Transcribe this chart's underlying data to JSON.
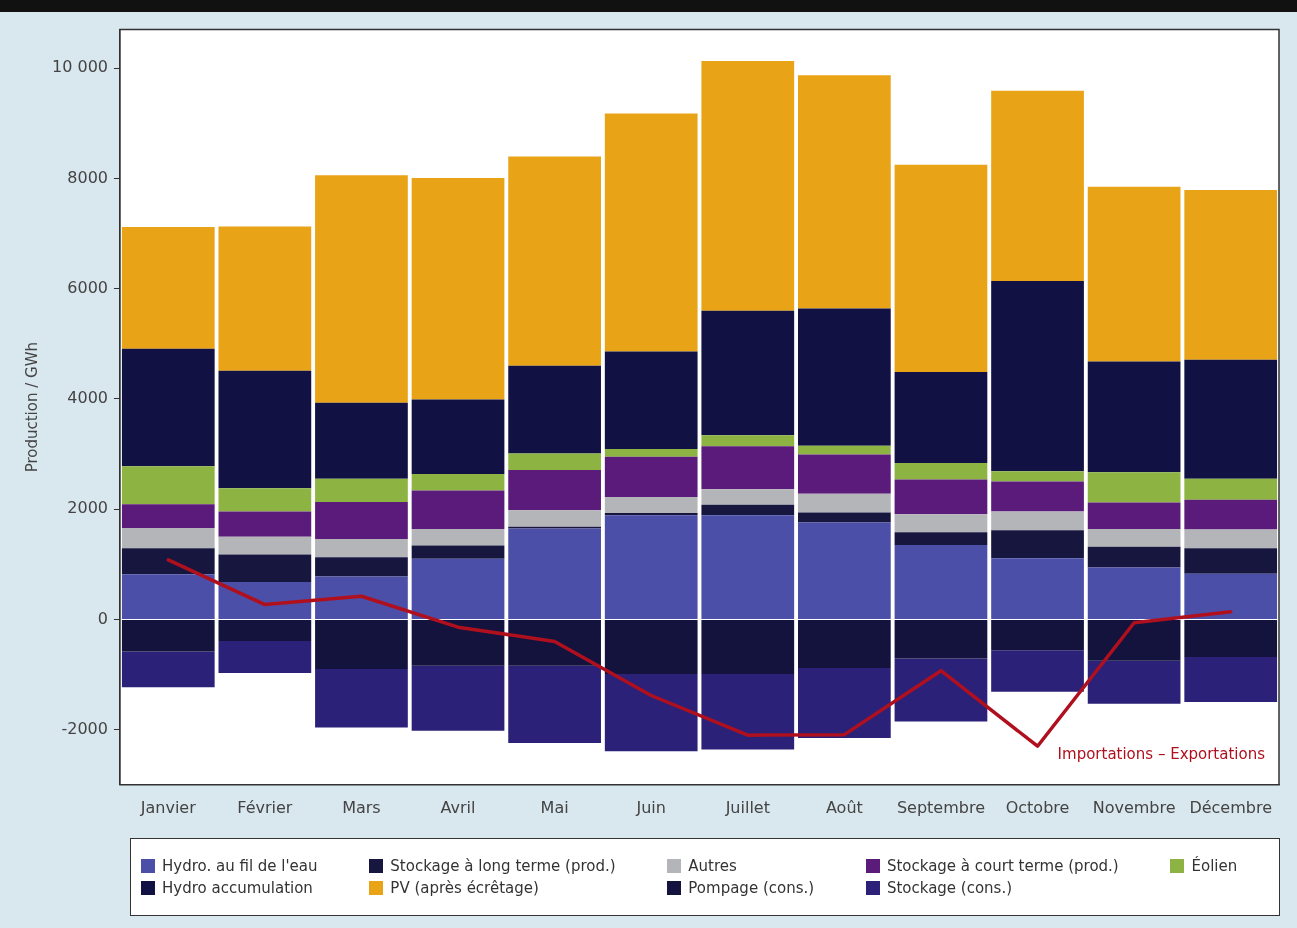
{
  "chart_data": {
    "type": "bar",
    "stacked": true,
    "ylabel": "Production / GWh",
    "categories": [
      "Janvier",
      "Février",
      "Mars",
      "Avril",
      "Mai",
      "Juin",
      "Juillet",
      "Août",
      "Septembre",
      "Octobre",
      "Novembre",
      "Décembre"
    ],
    "ylim": [
      -3000,
      10700
    ],
    "yticks": [
      -2000,
      0,
      2000,
      4000,
      6000,
      8000,
      {
        "value": 10000,
        "label": "10 000"
      }
    ],
    "grid": false,
    "legend": "bottom",
    "series": [
      {
        "name": "Hydro. au fil de l'eau",
        "color": "#4b4fa8",
        "values": [
          820,
          680,
          780,
          1100,
          1650,
          1890,
          1890,
          1760,
          1350,
          1110,
          940,
          830
        ]
      },
      {
        "name": "Stockage à long terme (prod.)",
        "color": "#16163f",
        "values": [
          470,
          500,
          350,
          240,
          30,
          40,
          190,
          180,
          230,
          510,
          380,
          460
        ]
      },
      {
        "name": "Autres",
        "color": "#b4b5b9",
        "values": [
          370,
          320,
          330,
          300,
          300,
          290,
          280,
          340,
          330,
          340,
          320,
          340
        ]
      },
      {
        "name": "Stockage à court terme (prod.)",
        "color": "#5b1b7a",
        "values": [
          430,
          460,
          670,
          700,
          730,
          730,
          780,
          710,
          630,
          540,
          480,
          540
        ]
      },
      {
        "name": "Éolien",
        "color": "#8db443",
        "values": [
          690,
          420,
          420,
          300,
          300,
          140,
          200,
          160,
          300,
          190,
          550,
          380
        ]
      },
      {
        "name": "Hydro accumulation",
        "color": "#111144",
        "values": [
          2130,
          2130,
          1380,
          1350,
          1590,
          1770,
          2260,
          2490,
          1650,
          3450,
          2010,
          2160
        ]
      },
      {
        "name": "PV (après écrêtage)",
        "color": "#e8a317",
        "values": [
          2210,
          2620,
          4130,
          4020,
          3800,
          4320,
          4530,
          4230,
          3760,
          3450,
          3170,
          3080
        ]
      },
      {
        "name": "Pompage (cons.)",
        "color": "#13133d",
        "values": [
          -580,
          -390,
          -900,
          -840,
          -840,
          -990,
          -990,
          -880,
          -710,
          -560,
          -750,
          -680
        ]
      },
      {
        "name": "Stockage (cons.)",
        "color": "#2b2178",
        "values": [
          -650,
          -580,
          -1060,
          -1180,
          -1400,
          -1400,
          -1370,
          -1270,
          -1140,
          -750,
          -780,
          -820
        ]
      },
      {
        "name": "Importations – Exportations",
        "type": "line",
        "color": "#b0101e",
        "marker": "none",
        "line_style": "solid",
        "values": [
          1080,
          270,
          420,
          -140,
          -400,
          -1380,
          -2100,
          -2090,
          -930,
          -2300,
          -60,
          140
        ]
      }
    ]
  }
}
